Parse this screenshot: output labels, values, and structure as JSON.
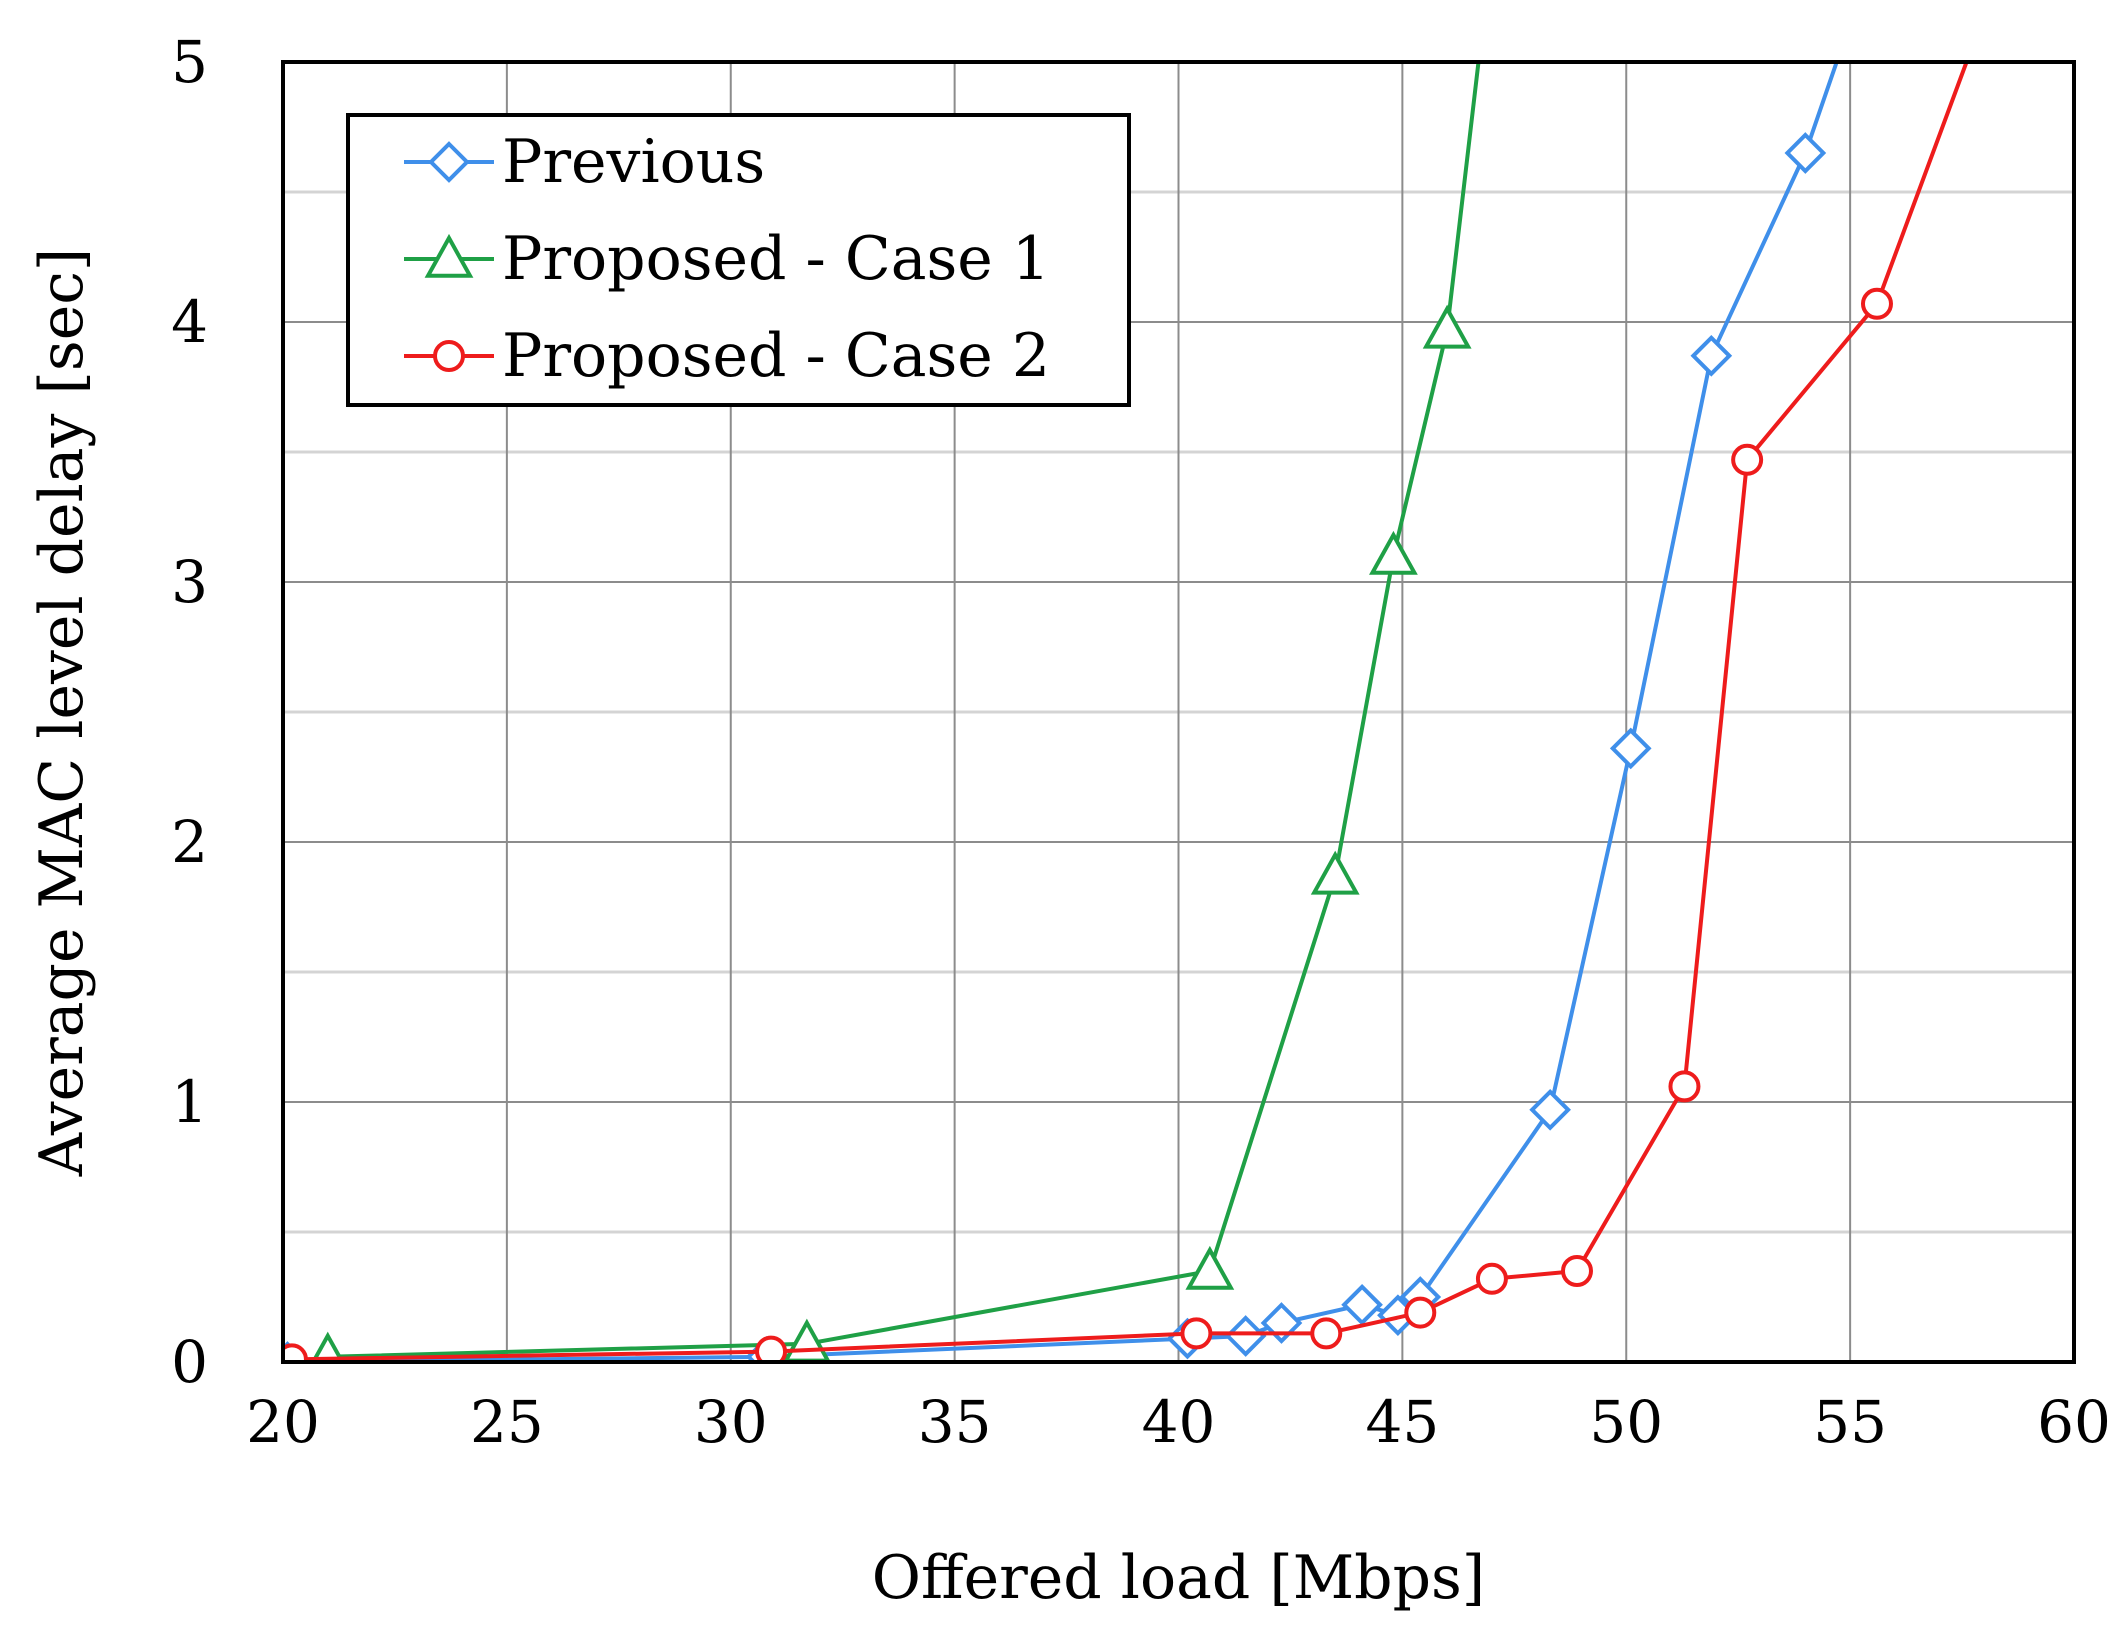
{
  "chart_data": {
    "type": "line",
    "title": "",
    "xlabel": "Offered load [Mbps]",
    "ylabel": "Average MAC level delay [sec]",
    "xlim": [
      20,
      60
    ],
    "ylim": [
      0,
      5
    ],
    "x_ticks": [
      20,
      25,
      30,
      35,
      40,
      45,
      50,
      55,
      60
    ],
    "y_ticks": [
      0,
      1,
      2,
      3,
      4,
      5
    ],
    "x_tick_labels": [
      "20",
      "25",
      "30",
      "35",
      "40",
      "45",
      "50",
      "55",
      "60"
    ],
    "y_tick_labels": [
      "0",
      "1",
      "2",
      "3",
      "4",
      "5"
    ],
    "x_minor_step": 2.5,
    "y_minor_step": 0.5,
    "grid": true,
    "legend_position": "top-left",
    "series": [
      {
        "name": "Previous",
        "color": "#3f8fea",
        "marker": "diamond",
        "x": [
          20.1,
          30.8,
          40.2,
          41.5,
          42.3,
          44.1,
          44.9,
          45.4,
          48.3,
          50.1,
          51.9,
          54.0,
          54.7
        ],
        "y": [
          0.0,
          0.02,
          0.09,
          0.1,
          0.15,
          0.22,
          0.18,
          0.25,
          0.97,
          2.36,
          3.87,
          4.65,
          5.0
        ]
      },
      {
        "name": "Proposed - Case 1",
        "color": "#1fa046",
        "marker": "triangle",
        "x": [
          21.0,
          31.7,
          40.7,
          43.5,
          44.8,
          46.0,
          46.7
        ],
        "y": [
          0.02,
          0.07,
          0.35,
          1.87,
          3.1,
          3.97,
          5.0
        ]
      },
      {
        "name": "Proposed - Case 2",
        "color": "#ee1c1c",
        "marker": "circle",
        "x": [
          20.2,
          30.9,
          40.4,
          43.3,
          45.4,
          47.0,
          48.9,
          51.3,
          52.7,
          55.6,
          57.6
        ],
        "y": [
          0.01,
          0.04,
          0.11,
          0.11,
          0.19,
          0.32,
          0.35,
          1.06,
          3.47,
          4.07,
          5.0
        ]
      }
    ]
  }
}
